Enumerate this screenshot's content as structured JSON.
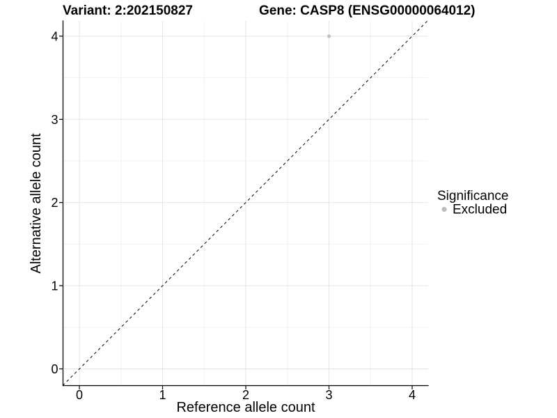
{
  "chart_data": {
    "type": "scatter",
    "title_left": "Variant: 2:202150827",
    "title_right": "Gene: CASP8 (ENSG00000064012)",
    "xlabel": "Reference allele count",
    "ylabel": "Alternative allele count",
    "x_ticks": [
      0,
      1,
      2,
      3,
      4
    ],
    "y_ticks": [
      0,
      1,
      2,
      3,
      4
    ],
    "xlim": [
      -0.2,
      4.19
    ],
    "ylim": [
      -0.21,
      4.18
    ],
    "grid": {
      "major": true,
      "minor": true
    },
    "series": [
      {
        "name": "Excluded",
        "color": "#c1c1c1",
        "points": [
          {
            "x": 3,
            "y": 4
          }
        ]
      }
    ],
    "reference_line": {
      "style": "dashed",
      "equation": "y = x",
      "color": "#000000"
    },
    "legend": {
      "title": "Significance",
      "position": "right",
      "items": [
        {
          "label": "Excluded",
          "color": "#bdbdbd"
        }
      ]
    },
    "colors": {
      "background": "#ffffff",
      "grid_major": "#e3e3e3",
      "grid_minor": "#f0f0f0",
      "axis": "#000000",
      "text": "#000000"
    }
  }
}
